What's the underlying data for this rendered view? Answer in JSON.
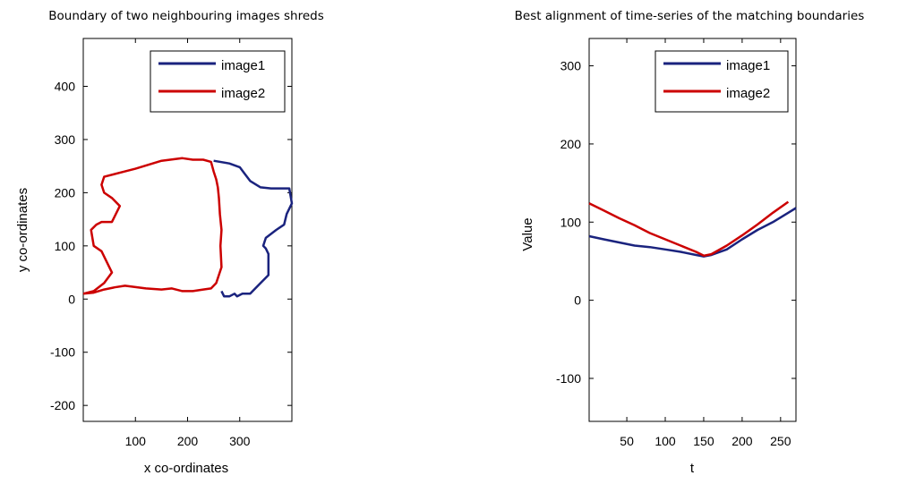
{
  "chart_data": [
    {
      "type": "line",
      "title": "Boundary of two neighbouring images shreds",
      "xlabel": "x co-ordinates",
      "ylabel": "y co-ordinates",
      "xlim": [
        0,
        400
      ],
      "ylim": [
        -230,
        490
      ],
      "xticks": [
        100,
        200,
        300
      ],
      "yticks": [
        -200,
        -100,
        0,
        100,
        200,
        300,
        400
      ],
      "grid": false,
      "legend_position": "top-right",
      "series": [
        {
          "name": "image1",
          "color": "#1a237e",
          "x": [
            250,
            280,
            300,
            310,
            320,
            340,
            360,
            380,
            395,
            400,
            390,
            385,
            370,
            350,
            345,
            350,
            355,
            355,
            340,
            320,
            305,
            295,
            290,
            280,
            270,
            265
          ],
          "y": [
            260,
            255,
            248,
            235,
            222,
            210,
            208,
            208,
            208,
            180,
            160,
            140,
            130,
            115,
            100,
            95,
            85,
            45,
            30,
            10,
            10,
            5,
            10,
            5,
            5,
            15
          ]
        },
        {
          "name": "image2",
          "color": "#cc0000",
          "x": [
            0,
            20,
            40,
            55,
            45,
            35,
            20,
            15,
            25,
            35,
            55,
            70,
            55,
            40,
            35,
            40,
            80,
            100,
            150,
            190,
            210,
            230,
            245,
            250,
            255,
            258,
            260,
            262,
            265,
            263,
            265,
            255,
            245,
            230,
            210,
            190,
            170,
            150,
            120,
            80,
            60,
            40,
            20,
            0
          ],
          "y": [
            10,
            15,
            30,
            50,
            70,
            90,
            100,
            130,
            140,
            145,
            145,
            175,
            190,
            200,
            215,
            230,
            240,
            245,
            260,
            265,
            262,
            262,
            258,
            240,
            225,
            210,
            190,
            160,
            130,
            100,
            60,
            30,
            20,
            18,
            15,
            15,
            20,
            18,
            20,
            25,
            22,
            18,
            12,
            10
          ]
        }
      ]
    },
    {
      "type": "line",
      "title": "Best alignment of time-series of the matching boundaries",
      "xlabel": "t",
      "ylabel": "Value",
      "xlim": [
        1,
        270
      ],
      "ylim": [
        -155,
        335
      ],
      "xticks": [
        50,
        100,
        150,
        200,
        250
      ],
      "yticks": [
        -100,
        0,
        100,
        200,
        300
      ],
      "grid": false,
      "legend_position": "top-right",
      "series": [
        {
          "name": "image1",
          "color": "#1a237e",
          "x": [
            1,
            20,
            40,
            60,
            80,
            100,
            120,
            140,
            150,
            160,
            180,
            200,
            220,
            240,
            260,
            270
          ],
          "y": [
            82,
            78,
            74,
            70,
            68,
            65,
            62,
            58,
            56,
            58,
            65,
            78,
            90,
            100,
            112,
            118
          ]
        },
        {
          "name": "image2",
          "color": "#cc0000",
          "x": [
            1,
            20,
            40,
            60,
            80,
            100,
            120,
            140,
            150,
            160,
            180,
            200,
            220,
            240,
            260
          ],
          "y": [
            124,
            115,
            105,
            96,
            86,
            78,
            70,
            62,
            57,
            59,
            70,
            83,
            97,
            112,
            126
          ]
        }
      ]
    }
  ]
}
